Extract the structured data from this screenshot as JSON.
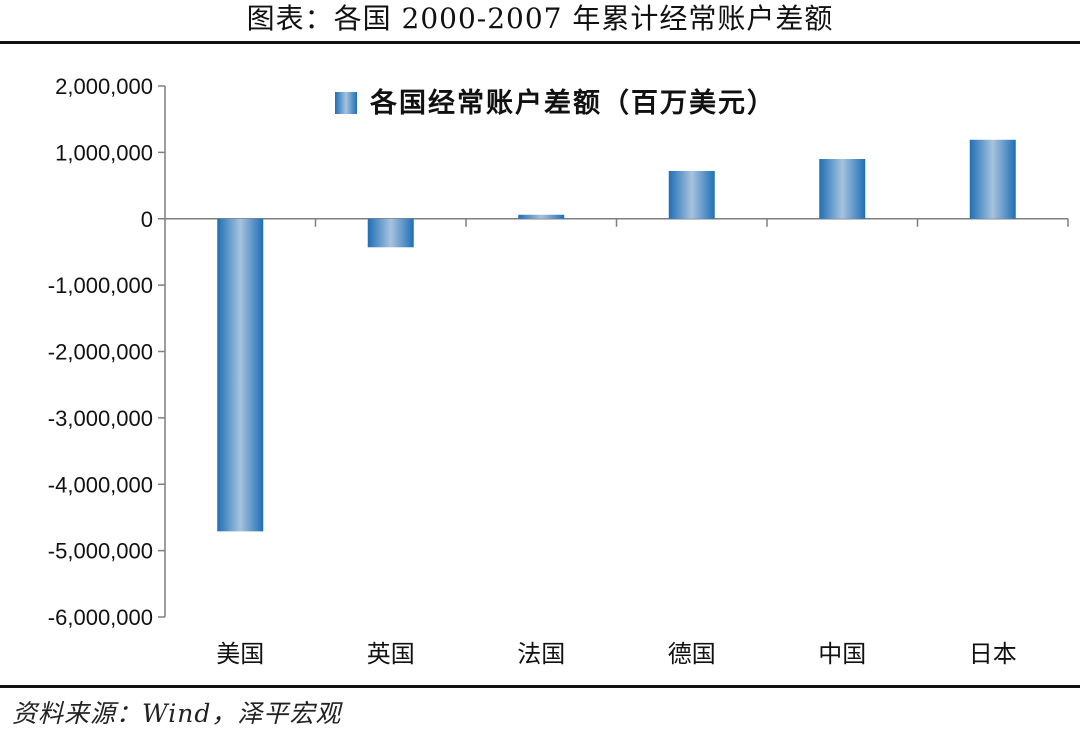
{
  "figure_title": "图表：各国 2000-2007 年累计经常账户差额",
  "source_note": "资料来源：Wind，泽平宏观",
  "colors": {
    "bar_dark": "#1f6fb5",
    "bar_light": "#a7c3de",
    "axis": "#7f7f7f"
  },
  "chart_data": {
    "type": "bar",
    "categories": [
      "美国",
      "英国",
      "法国",
      "德国",
      "中国",
      "日本"
    ],
    "series": [
      {
        "name": "各国经常账户差额（百万美元）",
        "values": [
          -4710000,
          -430000,
          60000,
          720000,
          900000,
          1190000
        ]
      }
    ],
    "ylim": [
      -6000000,
      2000000
    ],
    "yticks": [
      2000000,
      1000000,
      0,
      -1000000,
      -2000000,
      -3000000,
      -4000000,
      -5000000,
      -6000000
    ],
    "ytick_labels": [
      "2,000,000",
      "1,000,000",
      "0",
      "-1,000,000",
      "-2,000,000",
      "-3,000,000",
      "-4,000,000",
      "-5,000,000",
      "-6,000,000"
    ],
    "grid": false,
    "legend_position": "top-center"
  }
}
